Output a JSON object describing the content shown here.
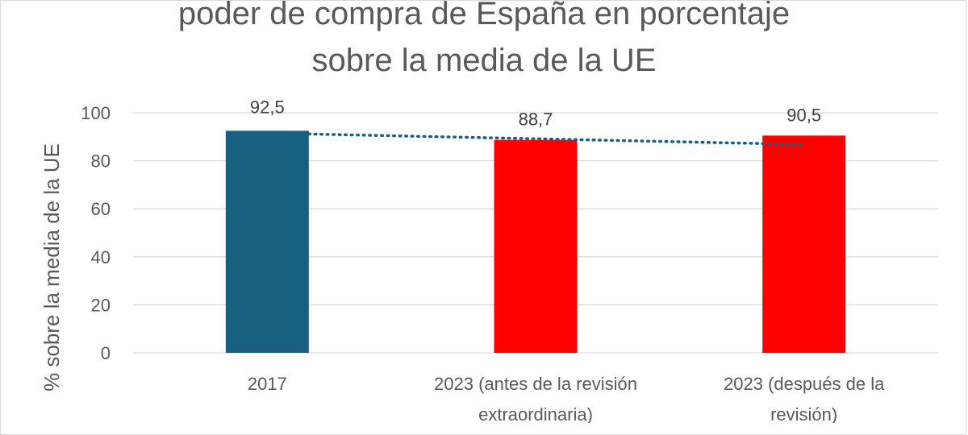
{
  "chart_data": {
    "type": "bar",
    "title": [
      "poder de compra de España en porcentaje",
      "sobre la media de la UE"
    ],
    "ylabel": "% sobre la media de la UE",
    "xlabel": "",
    "ylim": [
      0,
      100
    ],
    "yticks": [
      0,
      20,
      40,
      60,
      80,
      100
    ],
    "grid": true,
    "legend": "none",
    "categories": [
      [
        "2017"
      ],
      [
        "2023 (antes de la revisión",
        "extraordinaria)"
      ],
      [
        "2023 (después de la",
        "revisión)"
      ]
    ],
    "values": [
      92.5,
      88.7,
      90.5
    ],
    "value_labels": [
      "92,5",
      "88,7",
      "90,5"
    ],
    "bar_colors": [
      "#17607f",
      "#ff0000",
      "#ff0000"
    ],
    "trendline": {
      "style": "dotted",
      "color": "#17607f",
      "points": [
        92.5,
        89.5
      ]
    }
  }
}
